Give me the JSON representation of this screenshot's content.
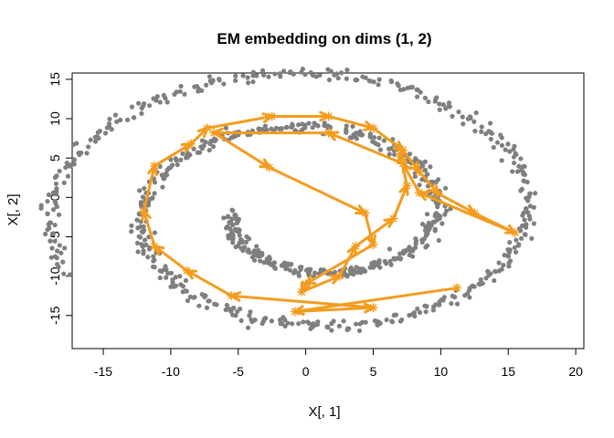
{
  "chart_data": {
    "type": "scatter",
    "title": "EM embedding on dims (1, 2)",
    "xlabel": "X[, 1]",
    "ylabel": "X[, 2]",
    "xlim": [
      -17.3,
      20.6
    ],
    "ylim": [
      -19.2,
      15.8
    ],
    "xticks": [
      -15,
      -10,
      -5,
      0,
      5,
      10,
      15,
      20
    ],
    "yticks": [
      -15,
      -10,
      -5,
      0,
      5,
      10,
      15
    ],
    "grid": false,
    "legend": "none",
    "colors": {
      "points": "#7f7f7f",
      "path": "#f39c1e"
    },
    "spiral_points": {
      "description_of_shape": "Archimedean spiral of noisy grey points",
      "center": [
        0.5,
        -2.0
      ],
      "radius_start": 5.8,
      "radius_per_radian": 1.08,
      "angle_start_deg": 180,
      "angle_end_deg": 922,
      "n": 900,
      "noise_sd": 0.35
    },
    "series": [
      {
        "values": [
          [
            11.2,
            -11.5
          ],
          [
            -0.8,
            -14.5
          ],
          [
            5.0,
            -14.0
          ],
          [
            -5.5,
            -12.5
          ],
          [
            -8.8,
            -9.3
          ],
          [
            -11.2,
            -6.2
          ],
          [
            -12.0,
            -1.7
          ],
          [
            -11.2,
            4.0
          ],
          [
            -8.5,
            6.8
          ],
          [
            -7.3,
            8.8
          ],
          [
            -2.5,
            10.3
          ],
          [
            1.7,
            10.3
          ],
          [
            5.0,
            8.8
          ],
          [
            7.2,
            6.0
          ],
          [
            8.4,
            3.3
          ],
          [
            9.8,
            0.5
          ],
          [
            12.5,
            -2.0
          ],
          [
            15.5,
            -4.5
          ],
          [
            8.4,
            0.6
          ],
          [
            7.2,
            4.3
          ],
          [
            1.7,
            8.2
          ],
          [
            -6.8,
            8.2
          ],
          [
            -2.7,
            3.8
          ],
          [
            4.4,
            -2.0
          ],
          [
            5.0,
            -6.0
          ],
          [
            0.0,
            -11.0
          ],
          [
            -0.3,
            -12.0
          ],
          [
            2.5,
            -10.0
          ],
          [
            3.7,
            -6.2
          ],
          [
            6.5,
            -2.7
          ],
          [
            7.5,
            1.5
          ],
          [
            7.0,
            5.5
          ]
        ]
      }
    ]
  }
}
